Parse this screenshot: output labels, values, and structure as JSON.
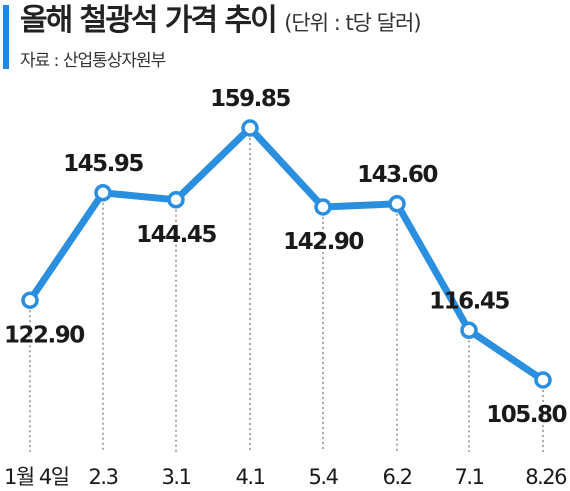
{
  "title": "올해 철광석 가격 추이",
  "unit": "(단위 : t당 달러)",
  "source": "자료 : 산업통상자원부",
  "colors": {
    "accent": "#1e88e5",
    "line": "#2b8fe0"
  },
  "chart_data": {
    "type": "line",
    "categories": [
      "1월 4일",
      "2.3",
      "3.1",
      "4.1",
      "5.4",
      "6.2",
      "7.1",
      "8.26"
    ],
    "series": [
      {
        "values": [
          122.9,
          145.95,
          144.45,
          159.85,
          142.9,
          143.6,
          116.45,
          105.8
        ]
      }
    ],
    "data_labels": [
      "122.90",
      "145.95",
      "144.45",
      "159.85",
      "142.90",
      "143.60",
      "116.45",
      "105.80"
    ],
    "grid": "vertical-dotted",
    "legend": "none"
  }
}
